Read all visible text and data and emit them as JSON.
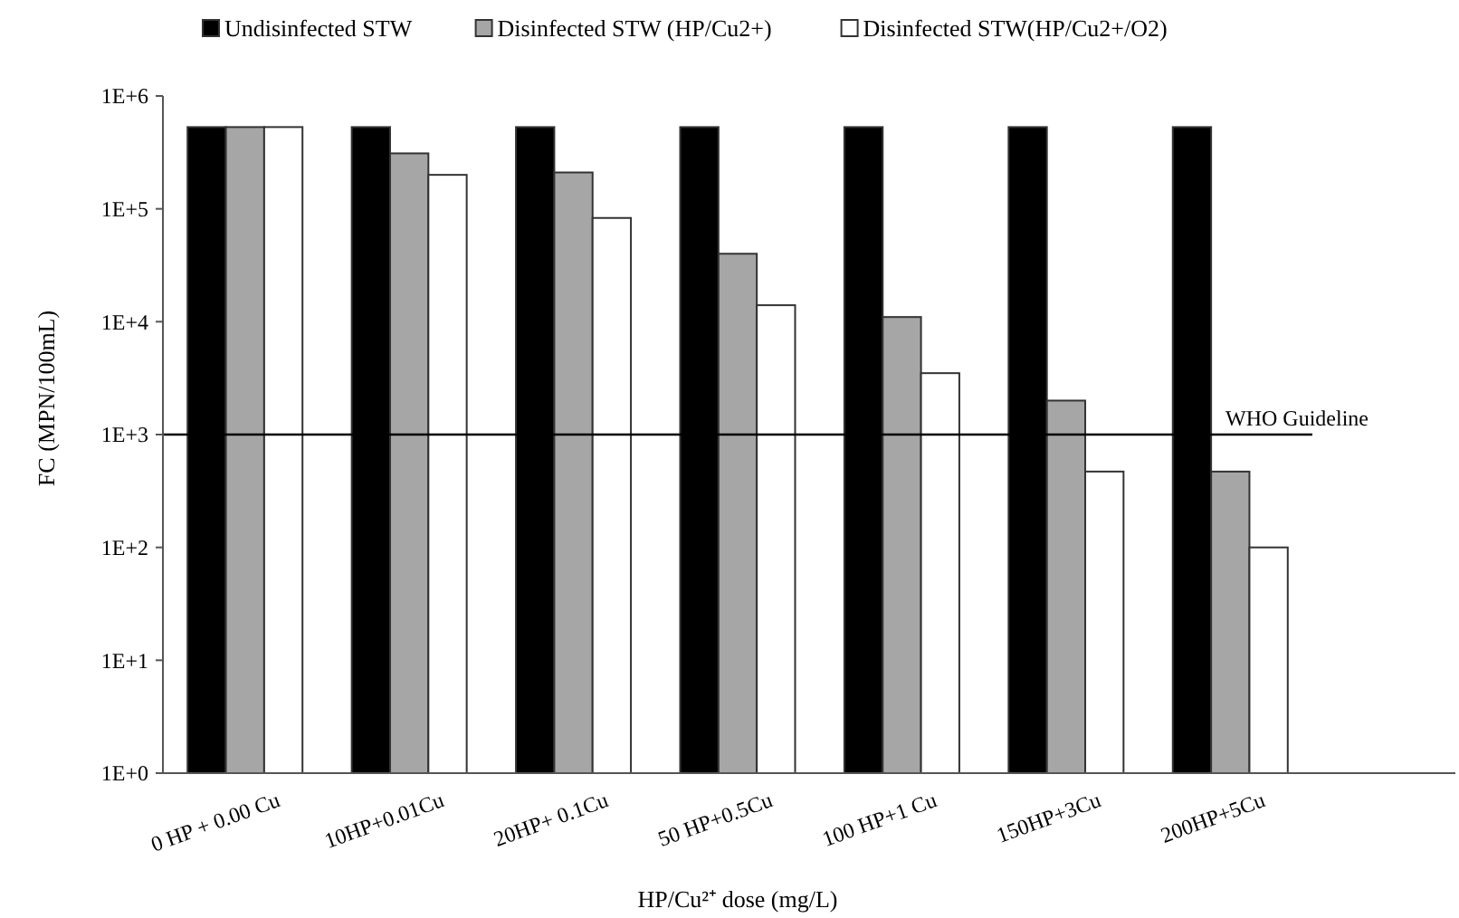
{
  "chart_data": {
    "type": "bar",
    "xlabel": "HP/Cu²⁺ dose (mg/L)",
    "ylabel": "FC (MPN/100mL)",
    "categories": [
      "0 HP + 0.00 Cu",
      "10HP+0.01Cu",
      "20HP+ 0.1Cu",
      "50 HP+0.5Cu",
      "100 HP+1 Cu",
      "150HP+3Cu",
      "200HP+5Cu"
    ],
    "series": [
      {
        "name": "Undisinfected STW",
        "color": "#000000",
        "values": [
          530000,
          530000,
          530000,
          530000,
          530000,
          530000,
          530000
        ]
      },
      {
        "name": "Disinfected STW (HP/Cu2+)",
        "color": "#a6a6a6",
        "values": [
          530000,
          310000,
          210000,
          40000,
          11000,
          2000,
          470
        ]
      },
      {
        "name": "Disinfected STW(HP/Cu2+/O2)",
        "color": "#ffffff",
        "values": [
          530000,
          200000,
          83000,
          14000,
          3500,
          470,
          100
        ]
      }
    ],
    "log": true,
    "ylim": [
      1,
      1000000
    ],
    "yticks": [
      {
        "value": 1,
        "label": "1E+0"
      },
      {
        "value": 10,
        "label": "1E+1"
      },
      {
        "value": 100,
        "label": "1E+2"
      },
      {
        "value": 1000,
        "label": "1E+3"
      },
      {
        "value": 10000,
        "label": "1E+4"
      },
      {
        "value": 100000,
        "label": "1E+5"
      },
      {
        "value": 1000000,
        "label": "1E+6"
      }
    ],
    "ref_lines": [
      {
        "axis": "y",
        "value": 1000,
        "label": "WHO Guideline",
        "color": "#000000"
      }
    ],
    "legend": "top",
    "grid": false
  }
}
